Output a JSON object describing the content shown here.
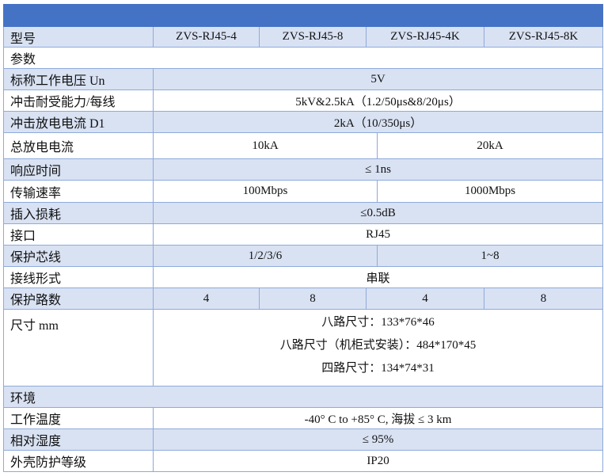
{
  "colors": {
    "header": "#4472C4",
    "band": "#D9E2F3",
    "border": "#8EAADB"
  },
  "header": {
    "label": "型号",
    "models": [
      "ZVS-RJ45-4",
      "ZVS-RJ45-8",
      "ZVS-RJ45-4K",
      "ZVS-RJ45-8K"
    ]
  },
  "rows": {
    "params": {
      "label": "参数"
    },
    "voltage": {
      "label": "标称工作电压 Un",
      "value": "5V"
    },
    "impulse": {
      "label": "冲击耐受能力/每线",
      "value": "5kV&2.5kA（1.2/50μs&8/20μs）"
    },
    "discharge": {
      "label": "冲击放电电流 D1",
      "value": "2kA（10/350μs）"
    },
    "total": {
      "label": "总放电电流",
      "a": "10kA",
      "b": "20kA"
    },
    "response": {
      "label": "响应时间",
      "value": "≤ 1ns"
    },
    "rate": {
      "label": "传输速率",
      "a": "100Mbps",
      "b": "1000Mbps"
    },
    "loss": {
      "label": "插入损耗",
      "value": "≤0.5dB"
    },
    "port": {
      "label": "接口",
      "value": "RJ45"
    },
    "cores": {
      "label": "保护芯线",
      "a": "1/2/3/6",
      "b": "1~8"
    },
    "wiring": {
      "label": "接线形式",
      "value": "串联"
    },
    "channels": {
      "label": "保护路数",
      "values": [
        "4",
        "8",
        "4",
        "8"
      ]
    },
    "size": {
      "label": "尺寸 mm",
      "lines": [
        "八路尺寸：133*76*46",
        "八路尺寸（机柜式安装）：484*170*45",
        "四路尺寸：134*74*31"
      ]
    },
    "env": {
      "label": "环境"
    },
    "temp": {
      "label": "工作温度",
      "value": "-40° C to +85° C, 海拔 ≤ 3 km"
    },
    "humidity": {
      "label": "相对湿度",
      "value": "≤ 95%"
    },
    "ip": {
      "label": "外壳防护等级",
      "value": "IP20"
    }
  }
}
